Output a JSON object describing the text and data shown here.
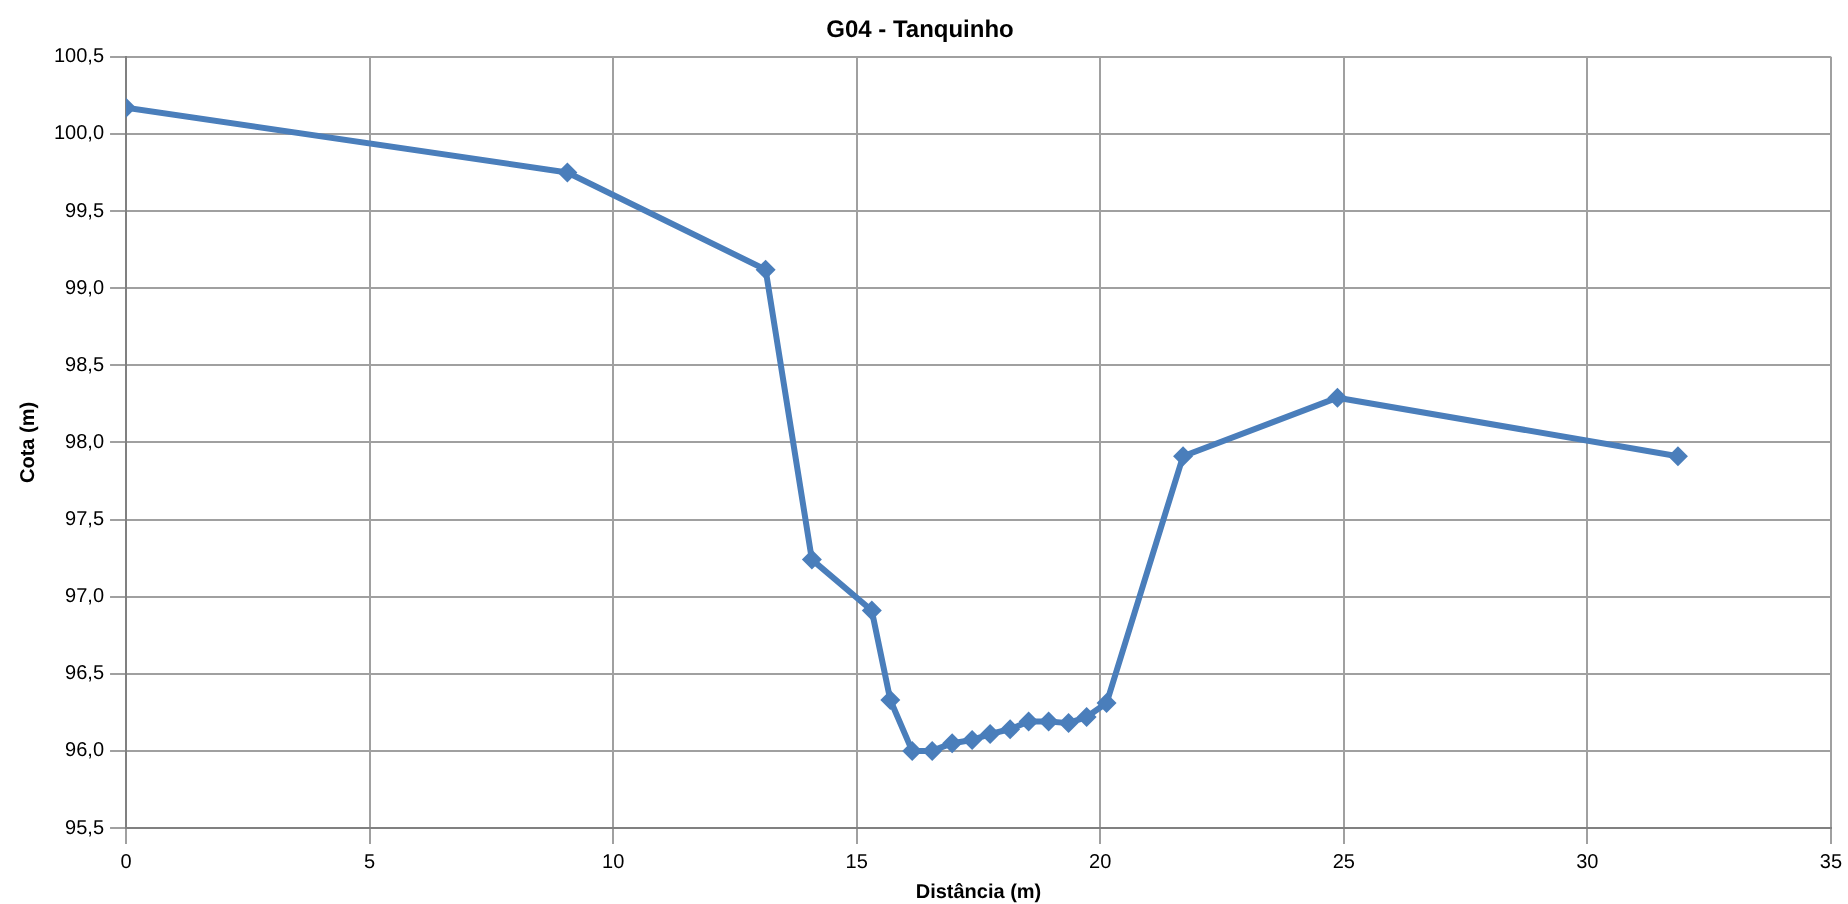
{
  "chart_data": {
    "type": "line",
    "title": "G04 - Tanquinho",
    "xlabel": "Distância (m)",
    "ylabel": "Cota (m)",
    "series": [
      {
        "color": "#4a7ebb",
        "x": [
          0,
          9.06,
          13.13,
          14.08,
          15.31,
          15.69,
          16.14,
          16.55,
          16.96,
          17.37,
          17.74,
          18.15,
          18.53,
          18.94,
          19.35,
          19.72,
          20.13,
          21.7,
          24.87,
          31.86
        ],
        "values": [
          100.17,
          99.75,
          99.12,
          97.24,
          96.91,
          96.33,
          96.0,
          96.0,
          96.05,
          96.07,
          96.11,
          96.14,
          96.19,
          96.19,
          96.18,
          96.22,
          96.31,
          97.91,
          98.29,
          97.91
        ]
      }
    ],
    "xlim": [
      0,
      35
    ],
    "xticks": [
      0,
      5,
      10,
      15,
      20,
      25,
      30,
      35
    ],
    "ylim": [
      95.5,
      100.5
    ],
    "yticks": [
      {
        "value": 95.5,
        "label": "95,5"
      },
      {
        "value": 96,
        "label": "96,0"
      },
      {
        "value": 96.5,
        "label": "96,5"
      },
      {
        "value": 97,
        "label": "97,0"
      },
      {
        "value": 97.5,
        "label": "97,5"
      },
      {
        "value": 98,
        "label": "98,0"
      },
      {
        "value": 98.5,
        "label": "98,5"
      },
      {
        "value": 99,
        "label": "99,0"
      },
      {
        "value": 99.5,
        "label": "99,5"
      },
      {
        "value": 100,
        "label": "100,0"
      },
      {
        "value": 100.5,
        "label": "100,5"
      }
    ],
    "grid": true,
    "legend": false,
    "marker": "diamond",
    "line_style": "solid"
  }
}
